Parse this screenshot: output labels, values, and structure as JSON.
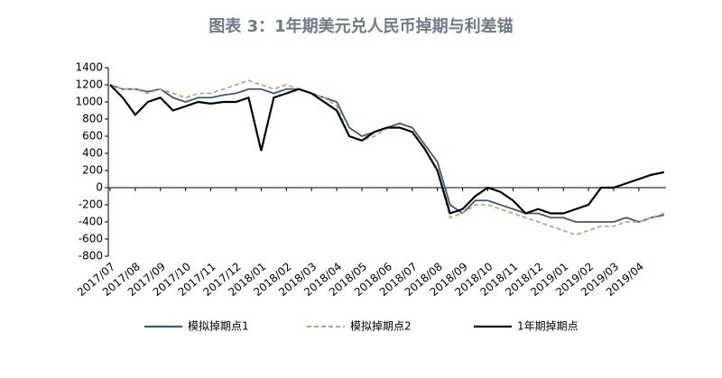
{
  "chart_data": {
    "type": "line",
    "title": "图表 3：1年期美元兑人民币掉期与利差锚",
    "categories": [
      "2017/07",
      null,
      "2017/08",
      null,
      "2017/09",
      null,
      "2017/10",
      null,
      "2017/11",
      null,
      "2017/12",
      null,
      "2018/01",
      null,
      "2018/02",
      null,
      "2018/03",
      null,
      "2018/04",
      null,
      "2018/05",
      null,
      "2018/06",
      null,
      "2018/07",
      null,
      "2018/08",
      null,
      "2018/09",
      null,
      "2018/10",
      null,
      "2018/11",
      null,
      "2018/12",
      null,
      "2019/01",
      null,
      "2019/02",
      null,
      "2019/03",
      null,
      "2019/04",
      null,
      null
    ],
    "series": [
      {
        "name": "模拟掉期点1",
        "color": "#3d5a73",
        "dash": "solid",
        "values": [
          1200,
          1150,
          1150,
          1120,
          1150,
          1050,
          1000,
          1050,
          1050,
          1080,
          1100,
          1150,
          1150,
          1100,
          1150,
          1150,
          1100,
          1050,
          1000,
          700,
          600,
          650,
          700,
          750,
          700,
          500,
          300,
          -200,
          -300,
          -150,
          -150,
          -200,
          -250,
          -300,
          -300,
          -350,
          -350,
          -400,
          -400,
          -400,
          -400,
          -350,
          -400,
          -350,
          -320
        ]
      },
      {
        "name": "模拟掉期点2",
        "color": "#b5a98e",
        "dash": "dashed",
        "values": [
          1200,
          1150,
          1150,
          1100,
          1150,
          1100,
          1050,
          1100,
          1100,
          1150,
          1200,
          1250,
          1200,
          1150,
          1200,
          1150,
          1100,
          1050,
          950,
          600,
          550,
          600,
          700,
          700,
          650,
          450,
          200,
          -350,
          -300,
          -200,
          -200,
          -250,
          -300,
          -350,
          -400,
          -450,
          -500,
          -550,
          -500,
          -450,
          -450,
          -400,
          -400,
          -350,
          -300
        ]
      },
      {
        "name": "1年期掉期点",
        "color": "#000000",
        "dash": "solid",
        "values": [
          1200,
          1050,
          850,
          1000,
          1050,
          900,
          950,
          1000,
          980,
          1000,
          1000,
          1050,
          430,
          1050,
          1100,
          1150,
          1100,
          1000,
          900,
          600,
          550,
          650,
          700,
          700,
          650,
          450,
          200,
          -300,
          -250,
          -100,
          0,
          -50,
          -150,
          -300,
          -250,
          -300,
          -300,
          -250,
          -200,
          0,
          0,
          50,
          100,
          150,
          180
        ]
      }
    ],
    "ylim": [
      -800,
      1400
    ],
    "yticks": [
      -800,
      -600,
      -400,
      -200,
      0,
      200,
      400,
      600,
      800,
      1000,
      1200,
      1400
    ],
    "legend": "bottom"
  }
}
